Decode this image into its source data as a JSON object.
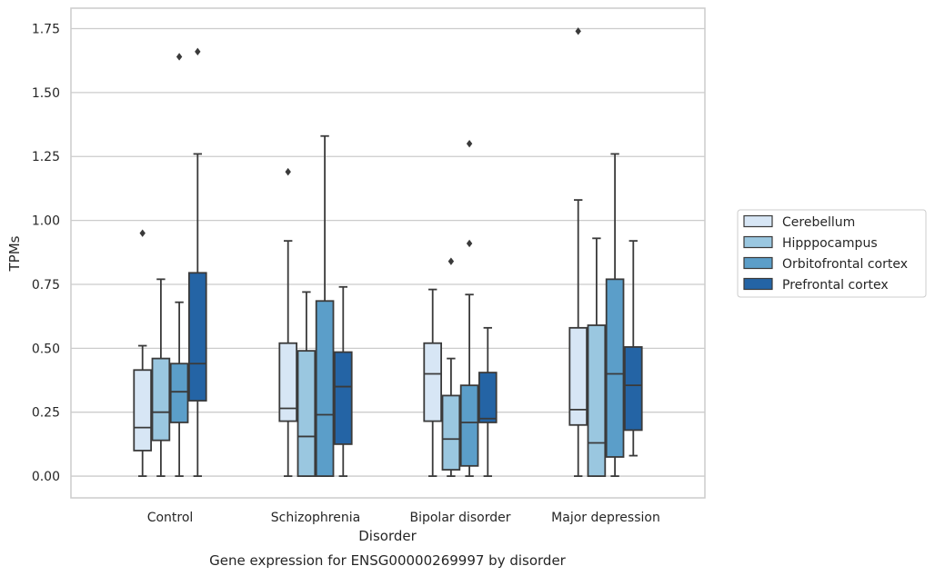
{
  "chart_data": {
    "type": "box",
    "title": "",
    "caption": "Gene expression for ENSG00000269997 by disorder",
    "xlabel": "Disorder",
    "ylabel": "TPMs",
    "ylim": [
      -0.085,
      1.83
    ],
    "yticks": [
      0.0,
      0.25,
      0.5,
      0.75,
      1.0,
      1.25,
      1.5,
      1.75
    ],
    "ytick_labels": [
      "0.00",
      "0.25",
      "0.50",
      "0.75",
      "1.00",
      "1.25",
      "1.50",
      "1.75"
    ],
    "grid": "horizontal",
    "legend_position": "right",
    "categories": [
      "Control",
      "Schizophrenia",
      "Bipolar disorder",
      "Major depression"
    ],
    "series": [
      {
        "name": "Cerebellum",
        "color": "#d7e6f5",
        "boxes": [
          {
            "whislo": 0.0,
            "q1": 0.1,
            "med": 0.19,
            "q3": 0.415,
            "whishi": 0.51,
            "fliers": [
              0.95
            ]
          },
          {
            "whislo": 0.0,
            "q1": 0.215,
            "med": 0.265,
            "q3": 0.52,
            "whishi": 0.92,
            "fliers": [
              1.19
            ]
          },
          {
            "whislo": 0.0,
            "q1": 0.215,
            "med": 0.4,
            "q3": 0.52,
            "whishi": 0.73,
            "fliers": []
          },
          {
            "whislo": 0.0,
            "q1": 0.2,
            "med": 0.26,
            "q3": 0.58,
            "whishi": 1.08,
            "fliers": [
              1.74
            ]
          }
        ]
      },
      {
        "name": "Hipppocampus",
        "color": "#9ac7e0",
        "boxes": [
          {
            "whislo": 0.0,
            "q1": 0.14,
            "med": 0.25,
            "q3": 0.46,
            "whishi": 0.77,
            "fliers": []
          },
          {
            "whislo": 0.0,
            "q1": 0.0,
            "med": 0.155,
            "q3": 0.49,
            "whishi": 0.72,
            "fliers": []
          },
          {
            "whislo": 0.0,
            "q1": 0.025,
            "med": 0.145,
            "q3": 0.315,
            "whishi": 0.46,
            "fliers": [
              0.84
            ]
          },
          {
            "whislo": 0.0,
            "q1": 0.0,
            "med": 0.13,
            "q3": 0.59,
            "whishi": 0.93,
            "fliers": []
          }
        ]
      },
      {
        "name": "Orbitofrontal cortex",
        "color": "#5b9ec9",
        "boxes": [
          {
            "whislo": 0.0,
            "q1": 0.21,
            "med": 0.33,
            "q3": 0.44,
            "whishi": 0.68,
            "fliers": [
              1.64
            ]
          },
          {
            "whislo": 0.0,
            "q1": 0.0,
            "med": 0.24,
            "q3": 0.685,
            "whishi": 1.33,
            "fliers": []
          },
          {
            "whislo": 0.0,
            "q1": 0.04,
            "med": 0.21,
            "q3": 0.355,
            "whishi": 0.71,
            "fliers": [
              0.91,
              1.3
            ]
          },
          {
            "whislo": 0.0,
            "q1": 0.075,
            "med": 0.4,
            "q3": 0.77,
            "whishi": 1.26,
            "fliers": []
          }
        ]
      },
      {
        "name": "Prefrontal cortex",
        "color": "#2464a5",
        "boxes": [
          {
            "whislo": 0.0,
            "q1": 0.295,
            "med": 0.44,
            "q3": 0.795,
            "whishi": 1.26,
            "fliers": [
              1.66
            ]
          },
          {
            "whislo": 0.0,
            "q1": 0.125,
            "med": 0.35,
            "q3": 0.485,
            "whishi": 0.74,
            "fliers": []
          },
          {
            "whislo": 0.0,
            "q1": 0.21,
            "med": 0.225,
            "q3": 0.405,
            "whishi": 0.58,
            "fliers": []
          },
          {
            "whislo": 0.08,
            "q1": 0.18,
            "med": 0.355,
            "q3": 0.505,
            "whishi": 0.92,
            "fliers": []
          }
        ]
      }
    ]
  }
}
